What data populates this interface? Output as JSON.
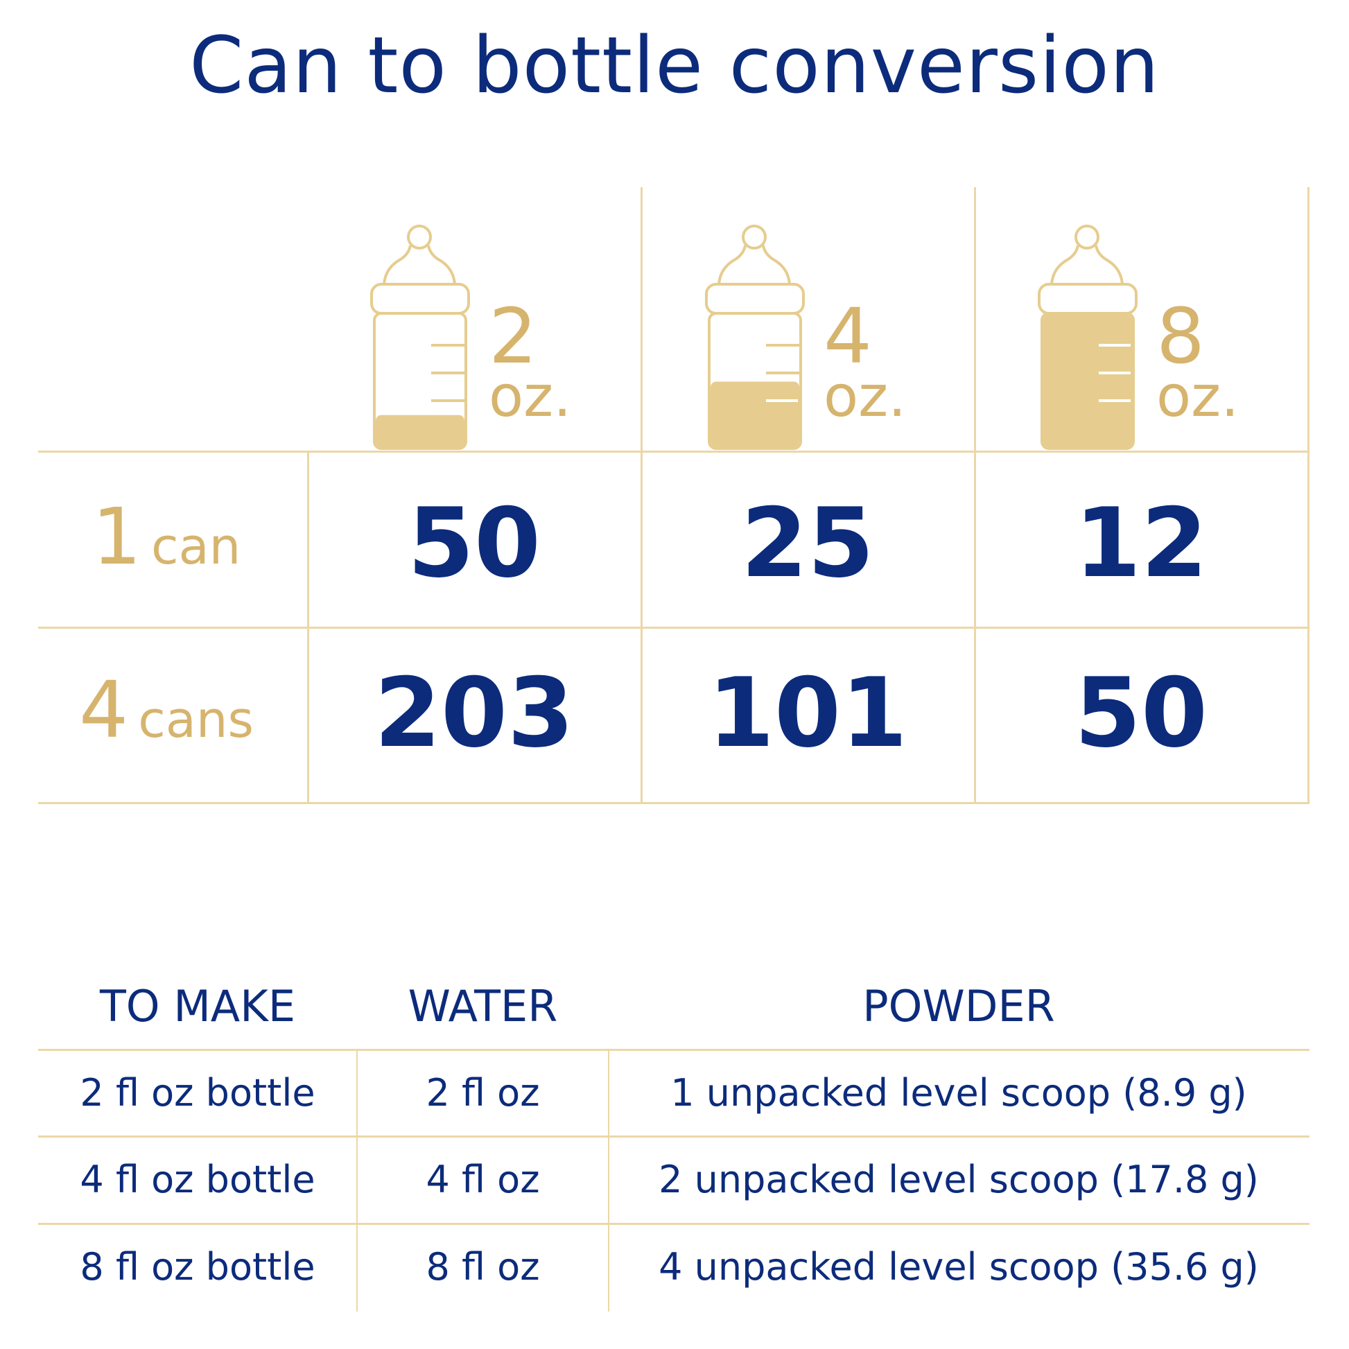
{
  "title": "Can to bottle conversion",
  "colors": {
    "navy": "#0c2b7b",
    "gold": "#d6b46e",
    "gold_line": "#ecd7a6"
  },
  "conversion_table": {
    "bottles": [
      {
        "size": "2",
        "unit": "oz.",
        "fill_fraction": 0.25,
        "icon": "baby-bottle-icon"
      },
      {
        "size": "4",
        "unit": "oz.",
        "fill_fraction": 0.5,
        "icon": "baby-bottle-icon"
      },
      {
        "size": "8",
        "unit": "oz.",
        "fill_fraction": 1.0,
        "icon": "baby-bottle-icon"
      }
    ],
    "rows": [
      {
        "count": "1",
        "unit": "can",
        "values": [
          "50",
          "25",
          "12"
        ]
      },
      {
        "count": "4",
        "unit": "cans",
        "values": [
          "203",
          "101",
          "50"
        ]
      }
    ]
  },
  "mixing_table": {
    "headers": [
      "TO MAKE",
      "WATER",
      "POWDER"
    ],
    "rows": [
      [
        "2 fl oz bottle",
        "2 fl oz",
        "1 unpacked level scoop (8.9 g)"
      ],
      [
        "4 fl oz bottle",
        "4 fl oz",
        "2 unpacked level scoop (17.8 g)"
      ],
      [
        "8 fl oz bottle",
        "8 fl oz",
        "4 unpacked level scoop (35.6 g)"
      ]
    ]
  }
}
